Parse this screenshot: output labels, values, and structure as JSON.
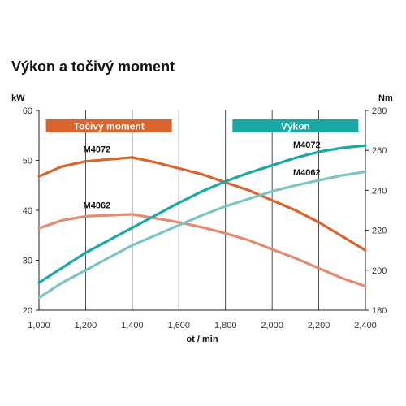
{
  "chart_data": {
    "type": "line",
    "title": "Výkon a točivý moment",
    "xlabel": "ot / min",
    "ylabel_left": "kW",
    "ylabel_right": "Nm",
    "xlim": [
      1000,
      2400
    ],
    "ylim_left": [
      20,
      60
    ],
    "ylim_right": [
      180,
      280
    ],
    "x_ticks": [
      "1,000",
      "1,200",
      "1,400",
      "1,600",
      "1,800",
      "2,000",
      "2,200",
      "2,400"
    ],
    "y_left_ticks": [
      "20",
      "30",
      "40",
      "50",
      "60"
    ],
    "y_right_ticks": [
      "180",
      "200",
      "220",
      "240",
      "260",
      "280"
    ],
    "grid": "vertical",
    "legend": [
      {
        "label": "Točivý moment",
        "color": "#d9652c",
        "span": [
          1030,
          1570
        ]
      },
      {
        "label": "Výkon",
        "color": "#1aa8a4",
        "span": [
          1830,
          2370
        ]
      }
    ],
    "series": [
      {
        "name": "M4072",
        "group": "torque",
        "axis": "right",
        "color": "#d9652c",
        "x": [
          1000,
          1100,
          1200,
          1300,
          1400,
          1500,
          1600,
          1700,
          1800,
          1900,
          2000,
          2100,
          2200,
          2300,
          2400
        ],
        "values": [
          247,
          252,
          254.5,
          255.5,
          256.5,
          254,
          251,
          248,
          244,
          240,
          235,
          230,
          224,
          217,
          210
        ]
      },
      {
        "name": "M4062",
        "group": "torque",
        "axis": "right",
        "color": "#e58a6c",
        "x": [
          1000,
          1100,
          1200,
          1300,
          1400,
          1500,
          1600,
          1700,
          1800,
          1900,
          2000,
          2100,
          2200,
          2300,
          2400
        ],
        "values": [
          221,
          225,
          227,
          227.5,
          228,
          226,
          224,
          221.5,
          218.5,
          215,
          210.5,
          206,
          201,
          196,
          192
        ]
      },
      {
        "name": "M4072",
        "group": "power",
        "axis": "left",
        "color": "#1aa8a4",
        "x": [
          1000,
          1100,
          1200,
          1300,
          1400,
          1500,
          1600,
          1700,
          1800,
          1900,
          2000,
          2100,
          2200,
          2300,
          2400
        ],
        "values": [
          25.5,
          28.5,
          31.5,
          34,
          36.5,
          39,
          41.5,
          43.8,
          45.8,
          47.5,
          49,
          50.5,
          51.7,
          52.5,
          53
        ]
      },
      {
        "name": "M4062",
        "group": "power",
        "axis": "left",
        "color": "#7cc4c4",
        "x": [
          1000,
          1100,
          1200,
          1300,
          1400,
          1500,
          1600,
          1700,
          1800,
          1900,
          2000,
          2100,
          2200,
          2300,
          2400
        ],
        "values": [
          22.5,
          25.5,
          28,
          30.5,
          33,
          35,
          37,
          39,
          40.8,
          42.3,
          43.8,
          45,
          46,
          47,
          47.7
        ]
      }
    ],
    "annotations": [
      {
        "text": "M4072",
        "x": 1190,
        "y_right": 259
      },
      {
        "text": "M4062",
        "x": 1190,
        "y_right": 231
      },
      {
        "text": "M4072",
        "x": 2090,
        "y_left": 52.5
      },
      {
        "text": "M4062",
        "x": 2090,
        "y_left": 47
      }
    ]
  }
}
